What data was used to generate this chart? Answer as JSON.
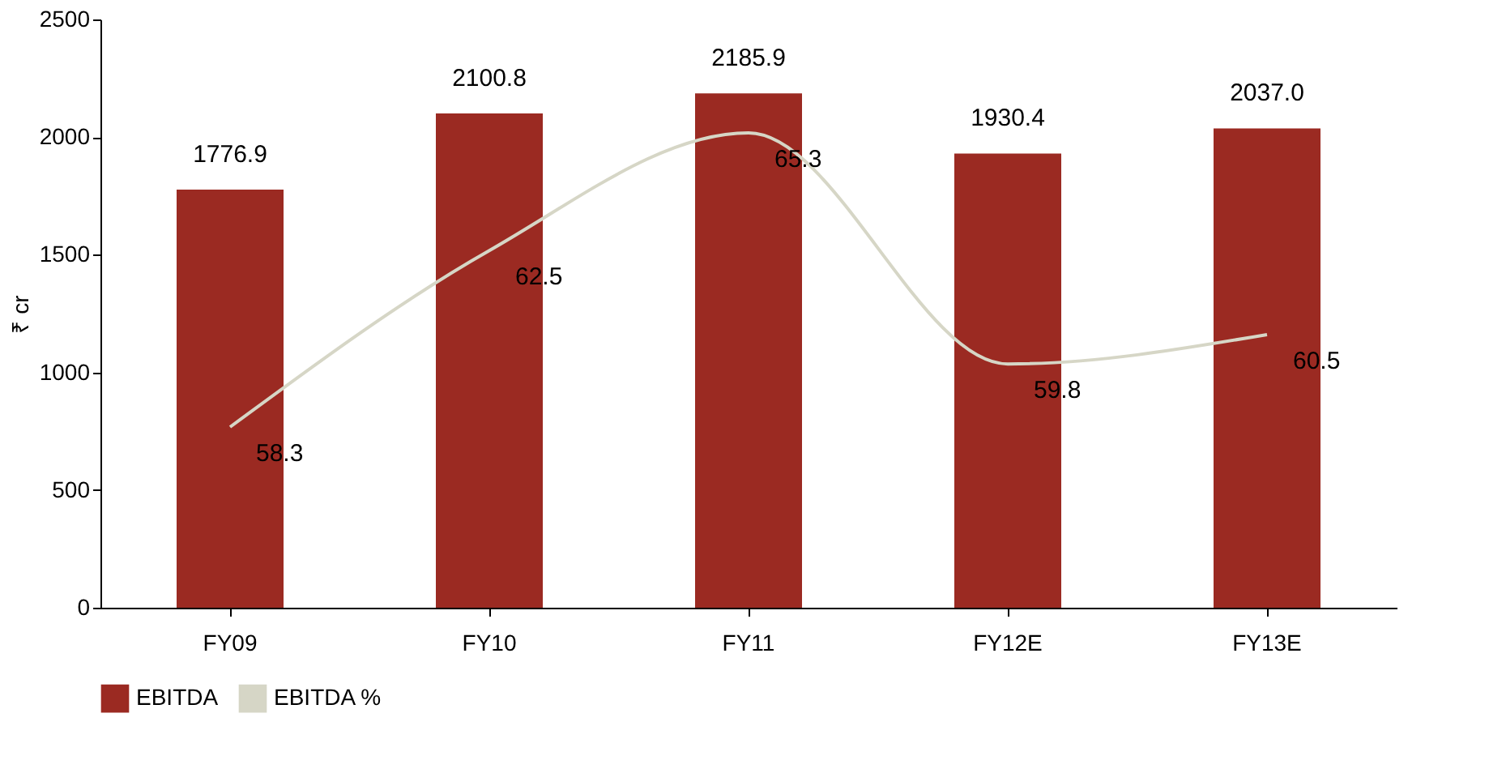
{
  "chart_data": {
    "type": "bar",
    "ylabel": "₹ cr",
    "categories": [
      "FY09",
      "FY10",
      "FY11",
      "FY12E",
      "FY13E"
    ],
    "series": [
      {
        "name": "EBITDA",
        "color": "#9b2a22",
        "values": [
          1776.9,
          2100.8,
          2185.9,
          1930.4,
          2037.0
        ],
        "value_labels": [
          "1776.9",
          "2100.8",
          "2185.9",
          "1930.4",
          "2037.0"
        ]
      },
      {
        "name": "EBITDA %",
        "type": "line",
        "axis": "y2",
        "color": "#d6d6c6",
        "values": [
          58.3,
          62.5,
          65.3,
          59.8,
          60.5
        ],
        "value_labels": [
          "58.3",
          "62.5",
          "65.3",
          "59.8",
          "60.5"
        ]
      }
    ],
    "ylim": [
      0,
      2500
    ],
    "yticks": [
      0,
      500,
      1000,
      1500,
      2000,
      2500
    ],
    "y2lim": [
      54,
      68
    ],
    "legend": "bottom",
    "grid": false
  }
}
